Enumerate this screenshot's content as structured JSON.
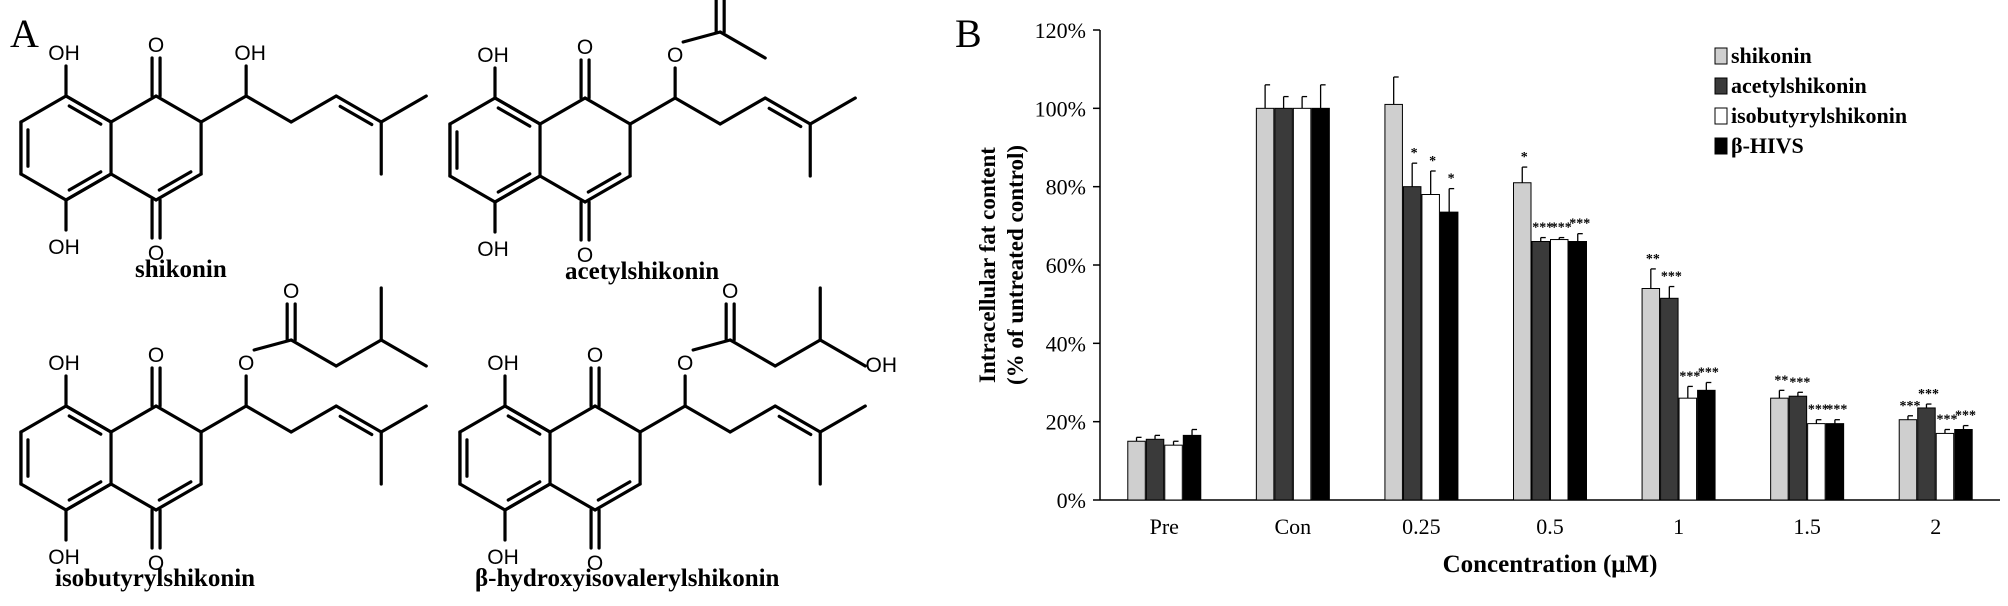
{
  "figure": {
    "panel_a_label": "A",
    "panel_b_label": "B"
  },
  "compounds": [
    {
      "name": "shikonin"
    },
    {
      "name": "acetylshikonin"
    },
    {
      "name": "isobutyrylshikonin"
    },
    {
      "name": "β-hydroxyisovalerylshikonin"
    }
  ],
  "atom_labels": {
    "oh": "OH",
    "o": "O"
  },
  "chart_data": {
    "type": "bar",
    "categories": [
      "Pre",
      "Con",
      "0.25",
      "0.5",
      "1",
      "1.5",
      "2"
    ],
    "xlabel": "Concentration (μM)",
    "ylabel_line1": "Intracellular fat content",
    "ylabel_line2": "(% of untreated control)",
    "yticks": [
      "0%",
      "20%",
      "40%",
      "60%",
      "80%",
      "100%",
      "120%"
    ],
    "ylim": [
      0,
      120
    ],
    "legend_position": "top-right",
    "series": [
      {
        "name": "shikonin",
        "color": "#cfcfcf",
        "values": [
          15,
          100,
          101,
          81,
          54,
          26,
          20.5
        ],
        "errors": [
          1,
          6,
          7,
          4,
          5,
          2,
          1
        ],
        "significance": [
          "",
          "",
          "",
          "*",
          "**",
          "**",
          "***"
        ]
      },
      {
        "name": "acetylshikonin",
        "color": "#3a3a3a",
        "values": [
          15.5,
          100,
          80,
          66,
          51.5,
          26.5,
          23.5
        ],
        "errors": [
          1,
          3,
          6,
          1,
          3,
          1,
          1
        ],
        "significance": [
          "",
          "",
          "*",
          "***",
          "***",
          "***",
          "***"
        ]
      },
      {
        "name": "isobutyrylshikonin",
        "color": "#ffffff",
        "values": [
          14,
          100,
          78,
          66.5,
          26,
          19.5,
          17
        ],
        "errors": [
          1,
          3,
          6,
          0.5,
          3,
          1,
          1
        ],
        "significance": [
          "",
          "",
          "*",
          "***",
          "***",
          "***",
          "***"
        ]
      },
      {
        "name": "β-HIVS",
        "color": "#000000",
        "values": [
          16.5,
          100,
          73.5,
          66,
          28,
          19.5,
          18
        ],
        "errors": [
          1.5,
          6,
          6,
          2,
          2,
          1,
          1
        ],
        "significance": [
          "",
          "",
          "*",
          "***",
          "***",
          "***",
          "***"
        ]
      }
    ]
  }
}
